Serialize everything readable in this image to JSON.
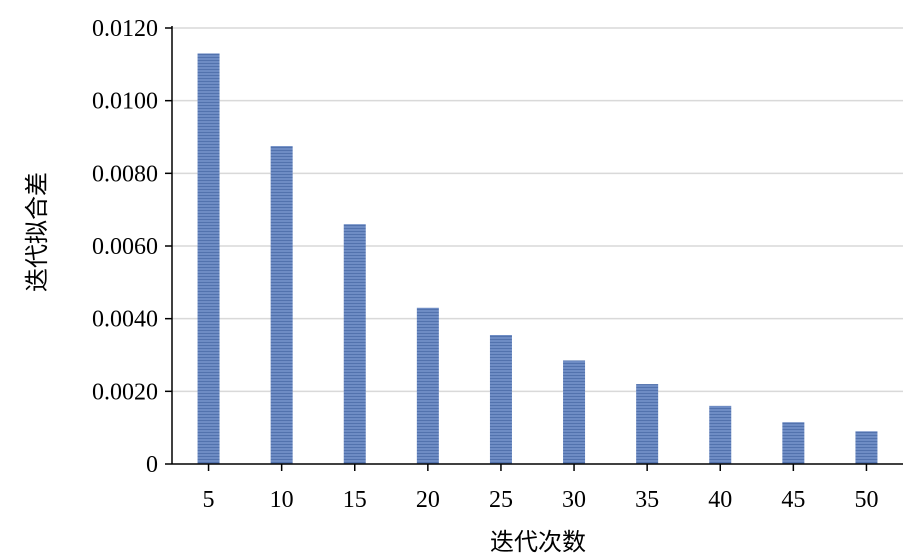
{
  "chart_data": {
    "type": "bar",
    "title": "",
    "xlabel": "迭代次数",
    "ylabel": "迭代拟合差",
    "categories": [
      "5",
      "10",
      "15",
      "20",
      "25",
      "30",
      "35",
      "40",
      "45",
      "50"
    ],
    "values": [
      0.0113,
      0.00875,
      0.0066,
      0.0043,
      0.00355,
      0.00285,
      0.0022,
      0.0016,
      0.00115,
      0.0009
    ],
    "ylim": [
      0,
      0.012
    ],
    "yticks": [
      "0",
      "0.0020",
      "0.0040",
      "0.0060",
      "0.0080",
      "0.0100",
      "0.0120"
    ],
    "ytick_values": [
      0,
      0.002,
      0.004,
      0.006,
      0.008,
      0.01,
      0.012
    ],
    "grid": true,
    "legend": "none",
    "colors": {
      "bar": "#6e8cc4",
      "bar_stripe": "#5272ad",
      "grid": "#d9d9d9",
      "axis": "#000000"
    }
  }
}
